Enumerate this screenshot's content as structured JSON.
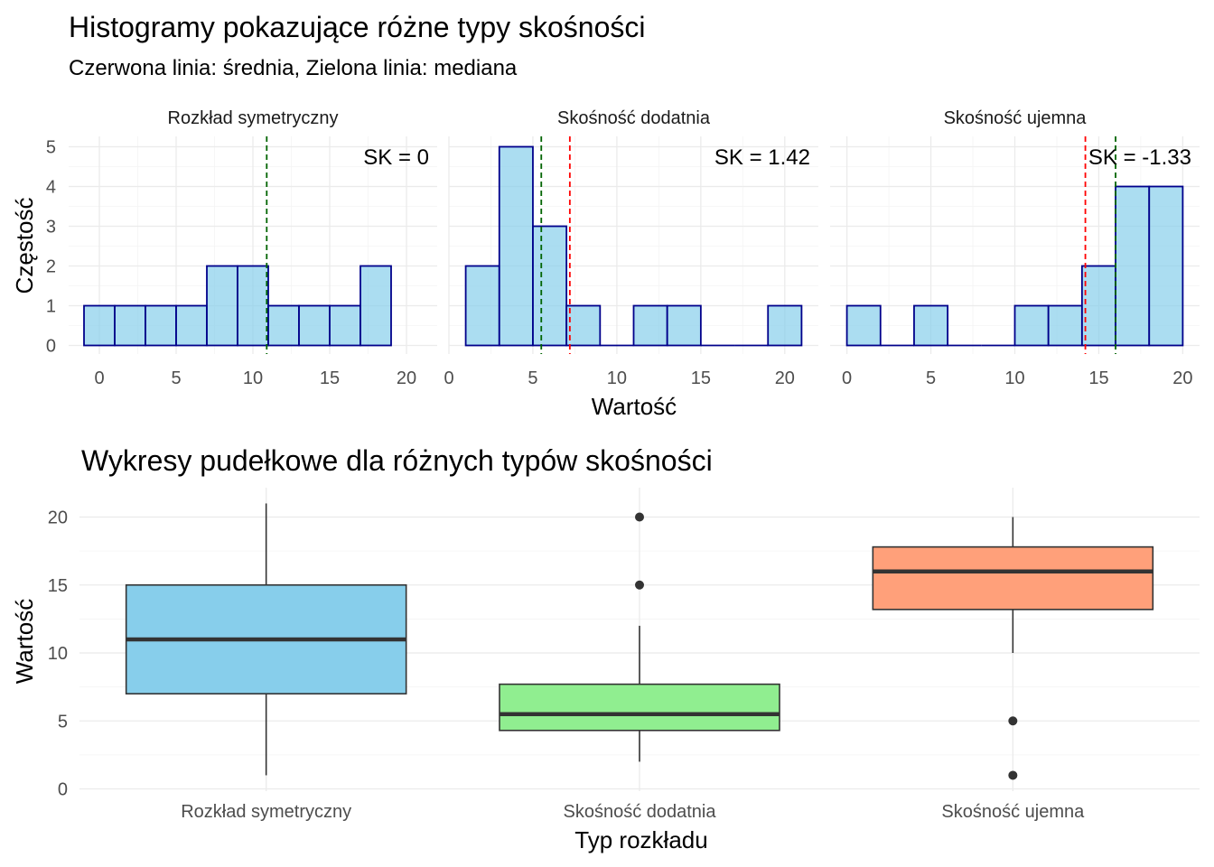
{
  "chart_data": [
    {
      "type": "bar",
      "subtype": "histogram",
      "title": "Histogramy pokazujące różne typy skośności",
      "subtitle": "Czerwona linia: średnia, Zielona linia: mediana",
      "xlabel": "Wartość",
      "ylabel": "Częstość",
      "ylim": [
        0,
        5
      ],
      "yticks": [
        0,
        1,
        2,
        3,
        4,
        5
      ],
      "grid": true,
      "colors": {
        "fill": "#87CEEB",
        "edge": "#00008B",
        "mean": "#FF0000",
        "median": "#006400"
      },
      "panels": [
        {
          "name": "Rozkład symetryczny",
          "xlim": [
            -2,
            22
          ],
          "xticks": [
            0,
            5,
            10,
            15,
            20
          ],
          "bin_width": 2,
          "bins": [
            {
              "start": -1,
              "end": 1,
              "count": 1
            },
            {
              "start": 1,
              "end": 3,
              "count": 1
            },
            {
              "start": 3,
              "end": 5,
              "count": 1
            },
            {
              "start": 5,
              "end": 7,
              "count": 1
            },
            {
              "start": 7,
              "end": 9,
              "count": 2
            },
            {
              "start": 9,
              "end": 11,
              "count": 2
            },
            {
              "start": 11,
              "end": 13,
              "count": 1
            },
            {
              "start": 13,
              "end": 15,
              "count": 1
            },
            {
              "start": 15,
              "end": 17,
              "count": 1
            },
            {
              "start": 17,
              "end": 19,
              "count": 2
            }
          ],
          "mean": 10.9,
          "median": 10.9,
          "annotation": "SK = 0"
        },
        {
          "name": "Skośność dodatnia",
          "xlim": [
            0,
            22
          ],
          "xticks": [
            0,
            5,
            10,
            15,
            20
          ],
          "bin_width": 2,
          "bins": [
            {
              "start": 1,
              "end": 3,
              "count": 2
            },
            {
              "start": 3,
              "end": 5,
              "count": 5
            },
            {
              "start": 5,
              "end": 7,
              "count": 3
            },
            {
              "start": 7,
              "end": 9,
              "count": 1
            },
            {
              "start": 9,
              "end": 11,
              "count": 0
            },
            {
              "start": 11,
              "end": 13,
              "count": 1
            },
            {
              "start": 13,
              "end": 15,
              "count": 1
            },
            {
              "start": 15,
              "end": 17,
              "count": 0
            },
            {
              "start": 17,
              "end": 19,
              "count": 0
            },
            {
              "start": 19,
              "end": 21,
              "count": 1
            }
          ],
          "mean": 7.2,
          "median": 5.5,
          "annotation": "SK = 1.42"
        },
        {
          "name": "Skośność ujemna",
          "xlim": [
            -1,
            21
          ],
          "xticks": [
            0,
            5,
            10,
            15,
            20
          ],
          "bin_width": 2,
          "bins": [
            {
              "start": 0,
              "end": 2,
              "count": 1
            },
            {
              "start": 2,
              "end": 4,
              "count": 0
            },
            {
              "start": 4,
              "end": 6,
              "count": 1
            },
            {
              "start": 6,
              "end": 8,
              "count": 0
            },
            {
              "start": 8,
              "end": 10,
              "count": 0
            },
            {
              "start": 10,
              "end": 12,
              "count": 1
            },
            {
              "start": 12,
              "end": 14,
              "count": 1
            },
            {
              "start": 14,
              "end": 16,
              "count": 2
            },
            {
              "start": 16,
              "end": 18,
              "count": 4
            },
            {
              "start": 18,
              "end": 20,
              "count": 4
            }
          ],
          "mean": 14.2,
          "median": 16,
          "annotation": "SK = -1.33"
        }
      ]
    },
    {
      "type": "box",
      "title": "Wykresy pudełkowe dla różnych typów skośności",
      "xlabel": "Typ rozkładu",
      "ylabel": "Wartość",
      "ylim": [
        0,
        21
      ],
      "yticks": [
        0,
        5,
        10,
        15,
        20
      ],
      "grid": true,
      "categories": [
        "Rozkład symetryczny",
        "Skośność dodatnia",
        "Skośność ujemna"
      ],
      "boxes": [
        {
          "name": "Rozkład symetryczny",
          "min": 1,
          "q1": 7,
          "median": 11,
          "q3": 15,
          "max": 21,
          "outliers": [],
          "color": "#87CEEB"
        },
        {
          "name": "Skośność dodatnia",
          "min": 2,
          "q1": 4.3,
          "median": 5.5,
          "q3": 7.7,
          "max": 12,
          "outliers": [
            15,
            20
          ],
          "color": "#90EE90"
        },
        {
          "name": "Skośność ujemna",
          "min": 10,
          "q1": 13.2,
          "median": 16,
          "q3": 17.8,
          "max": 20,
          "outliers": [
            5,
            1
          ],
          "color": "#FFA07A"
        }
      ]
    }
  ]
}
